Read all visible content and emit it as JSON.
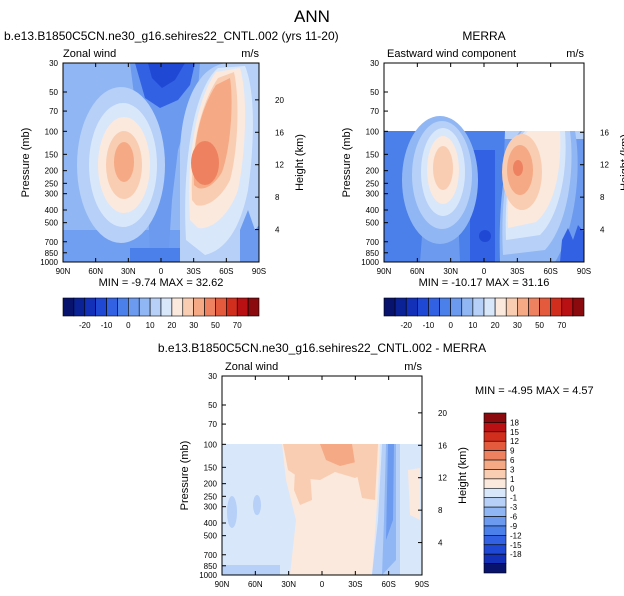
{
  "figure": {
    "title": "ANN"
  },
  "chart_data": [
    {
      "id": "model",
      "type": "heatmap",
      "title": "b.e13.B1850C5CN.ne30_g16.sehires22_CNTL.002 (yrs 11-20)",
      "left_label": "Zonal wind",
      "right_label": "m/s",
      "ylabel": "Pressure (mb)",
      "y2label": "Height (km)",
      "x_ticks": [
        "90N",
        "60N",
        "30N",
        "0",
        "30S",
        "60S",
        "90S"
      ],
      "y_ticks": [
        "30",
        "50",
        "70",
        "100",
        "150",
        "200",
        "250",
        "300",
        "400",
        "500",
        "700",
        "850",
        "1000"
      ],
      "y2_ticks": [
        "20",
        "16",
        "12",
        "8",
        "4"
      ],
      "ylim": [
        1000,
        30
      ],
      "data_top_mb": 30,
      "min_label": "MIN = -9.74   MAX =  32.62",
      "min": -9.74,
      "max": 32.62,
      "colorbar_levels": [
        "-20",
        "-10",
        "0",
        "10",
        "20",
        "30",
        "50",
        "70"
      ]
    },
    {
      "id": "obs",
      "type": "heatmap",
      "title": "MERRA",
      "left_label": "Eastward wind component",
      "right_label": "m/s",
      "ylabel": "Pressure (mb)",
      "y2label": "Height (km)",
      "x_ticks": [
        "90N",
        "60N",
        "30N",
        "0",
        "30S",
        "60S",
        "90S"
      ],
      "y_ticks": [
        "30",
        "50",
        "70",
        "100",
        "150",
        "200",
        "250",
        "300",
        "400",
        "500",
        "700",
        "850",
        "1000"
      ],
      "y2_ticks": [
        "16",
        "12",
        "8",
        "4"
      ],
      "ylim": [
        1000,
        30
      ],
      "data_top_mb": 100,
      "min_label": "MIN = -10.17   MAX =  31.16",
      "min": -10.17,
      "max": 31.16,
      "colorbar_levels": [
        "-20",
        "-10",
        "0",
        "10",
        "20",
        "30",
        "50",
        "70"
      ]
    },
    {
      "id": "diff",
      "type": "heatmap",
      "title": "b.e13.B1850C5CN.ne30_g16.sehires22_CNTL.002 - MERRA",
      "left_label": "Zonal wind",
      "right_label": "m/s",
      "ylabel": "Pressure (mb)",
      "y2label": "Height (km)",
      "x_ticks": [
        "90N",
        "60N",
        "30N",
        "0",
        "30S",
        "60S",
        "90S"
      ],
      "y_ticks": [
        "30",
        "50",
        "70",
        "100",
        "150",
        "200",
        "250",
        "300",
        "400",
        "500",
        "700",
        "850",
        "1000"
      ],
      "y2_ticks": [
        "20",
        "16",
        "12",
        "8",
        "4"
      ],
      "ylim": [
        1000,
        30
      ],
      "data_top_mb": 100,
      "min_label": "MIN = -4.95   MAX =   4.57",
      "min": -4.95,
      "max": 4.57,
      "colorbar_levels": [
        "18",
        "15",
        "12",
        "9",
        "6",
        "3",
        "1",
        "0",
        "-1",
        "-3",
        "-6",
        "-9",
        "-12",
        "-15",
        "-18"
      ]
    }
  ],
  "colors": {
    "full_palette": [
      "#08136e",
      "#0b2296",
      "#1331b8",
      "#1f48d4",
      "#3261e3",
      "#4b7fe9",
      "#6b9aef",
      "#90b6f4",
      "#b6d0f8",
      "#d9e7fb",
      "#fbe9dd",
      "#f9cdb2",
      "#f5a985",
      "#ee8260",
      "#e35b3c",
      "#d22e1e",
      "#b81013",
      "#8a0a0d"
    ],
    "diff_palette": [
      "#8a0a0d",
      "#b81013",
      "#d22e1e",
      "#e35b3c",
      "#ee8260",
      "#f5a985",
      "#f9cdb2",
      "#fbe9dd",
      "#d9e7fb",
      "#b6d0f8",
      "#90b6f4",
      "#6b9aef",
      "#4b7fe9",
      "#3261e3",
      "#1f48d4",
      "#1331b8",
      "#08136e"
    ]
  }
}
